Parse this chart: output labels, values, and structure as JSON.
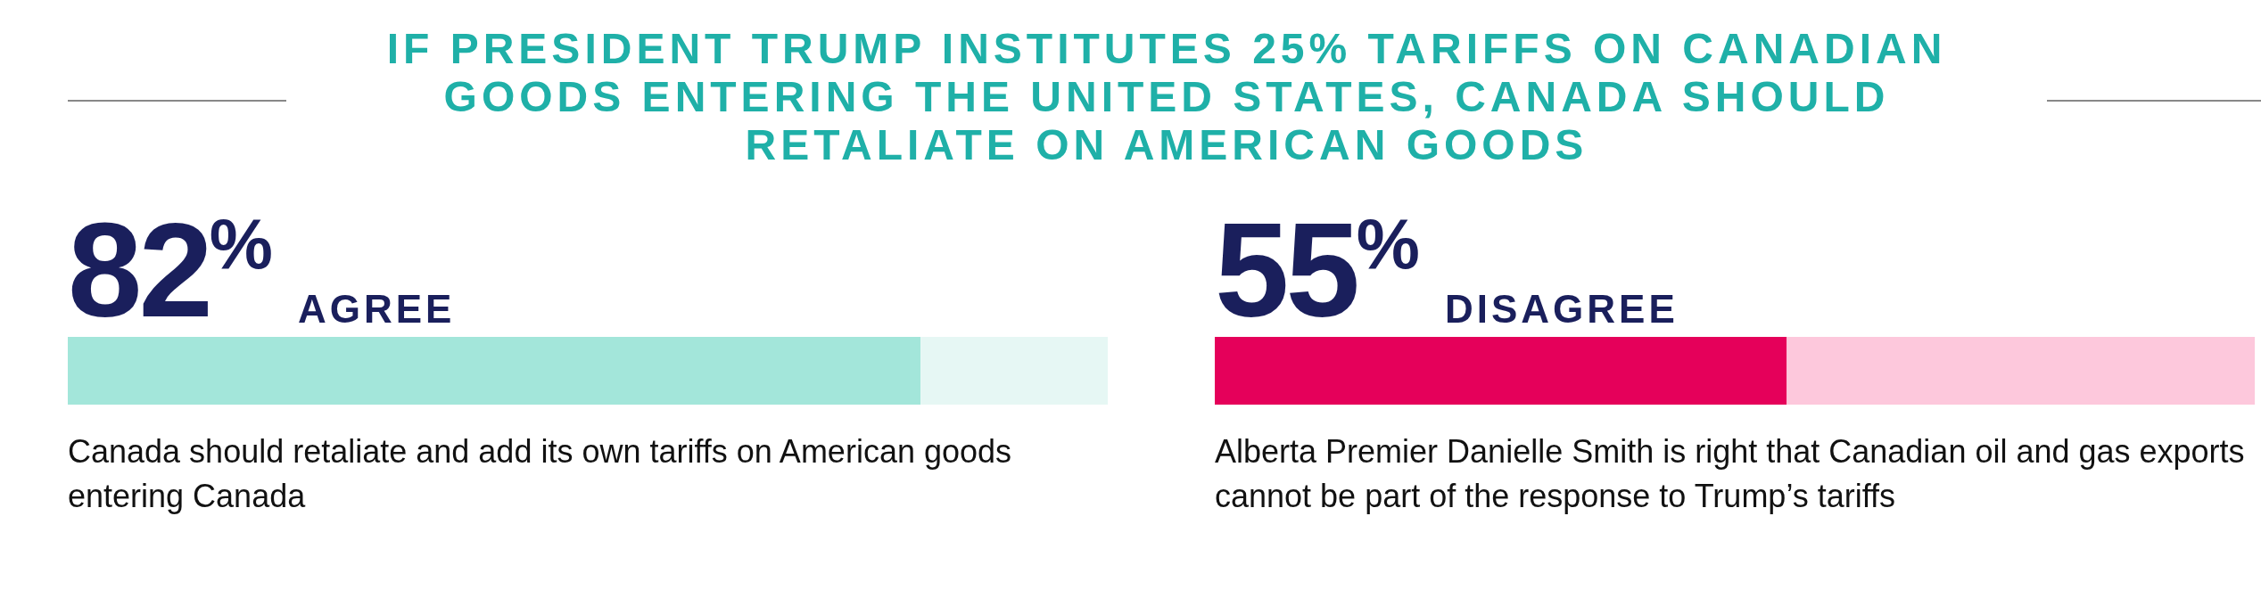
{
  "chart_data": [
    {
      "type": "bar",
      "orientation": "horizontal",
      "stacked": true,
      "title": "IF PRESIDENT TRUMP INSTITUTES 25% TARIFFS ON CANADIAN GOODS ENTERING THE UNITED STATES, CANADA SHOULD RETALIATE ON AMERICAN GOODS",
      "categories": [
        null
      ],
      "xlim": [
        0,
        100
      ],
      "tick_labels": false,
      "grid": false,
      "legend": false,
      "series": [
        {
          "name": "AGREE",
          "color": "#a3e6da",
          "values": [
            82
          ],
          "value_labels": [
            "82%"
          ]
        },
        {
          "color": "#e6f7f4",
          "values": [
            18
          ]
        }
      ],
      "annotations": [
        "Canada should retaliate and add its own tariffs on American goods entering Canada"
      ]
    },
    {
      "type": "bar",
      "orientation": "horizontal",
      "stacked": true,
      "categories": [
        null
      ],
      "xlim": [
        0,
        100
      ],
      "tick_labels": false,
      "grid": false,
      "legend": false,
      "series": [
        {
          "name": "DISAGREE",
          "color": "#e5005a",
          "values": [
            55
          ],
          "value_labels": [
            "55%"
          ]
        },
        {
          "color": "#fdc8dc",
          "values": [
            45
          ]
        }
      ],
      "annotations": [
        "Alberta Premier Danielle Smith is right that Canadian oil and gas exports cannot be part of the response to Trump’s tariffs"
      ]
    }
  ]
}
